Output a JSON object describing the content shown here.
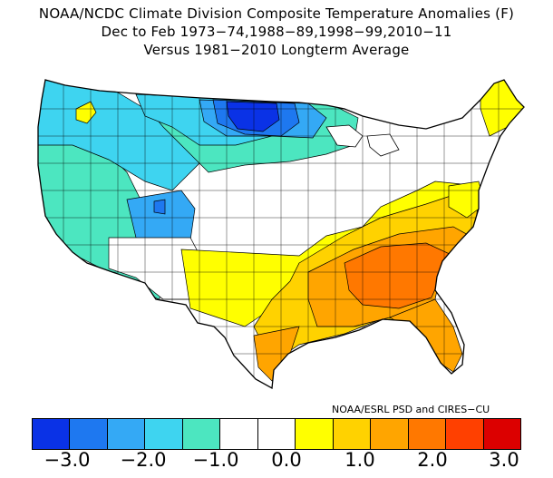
{
  "header": {
    "title_line1": "NOAA/NCDC Climate Division Composite Temperature Anomalies (F)",
    "title_line2": "Dec to Feb  1973−74,1988−89,1998−99,2010−11",
    "title_line3": "Versus 1981−2010 Longterm Average"
  },
  "credit": "NOAA/ESRL PSD and CIRES−CU",
  "colorbar": {
    "colors": [
      "#0a32e6",
      "#1e78f0",
      "#34a9f5",
      "#3ed4f0",
      "#4ce6c0",
      "#ffffff",
      "#ffffff",
      "#ffff00",
      "#ffd200",
      "#ffa500",
      "#ff7800",
      "#ff4000",
      "#dc0000"
    ],
    "tick_labels": [
      "−3.0",
      "−2.0",
      "−1.0",
      "0.0",
      "1.0",
      "2.0",
      "3.0"
    ]
  },
  "map": {
    "colors": {
      "outline": "#000000",
      "deep_blue": "#0a32e6",
      "blue": "#1e78f0",
      "light_blue": "#34a9f5",
      "cyan": "#3ed4f0",
      "teal": "#4ce6c0",
      "white": "#ffffff",
      "yellow": "#ffff00",
      "gold": "#ffd200",
      "orange": "#ffa500",
      "dark_orange": "#ff7800"
    }
  }
}
